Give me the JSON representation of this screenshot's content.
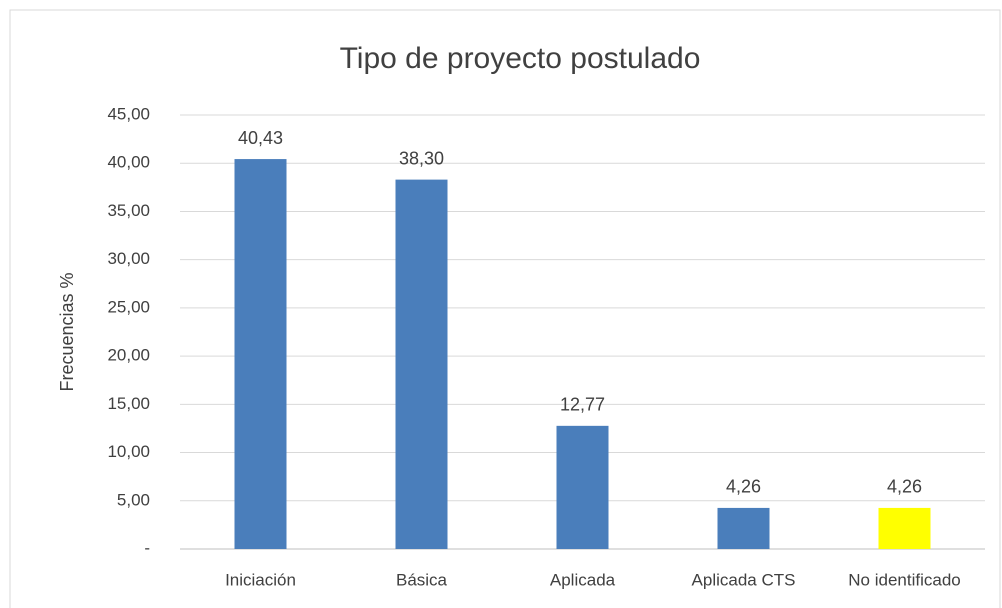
{
  "chart_data": {
    "type": "bar",
    "title": "Tipo de proyecto postulado",
    "y_label": "Frecuencias %",
    "categories": [
      "Iniciación",
      "Básica",
      "Aplicada",
      "Aplicada CTS",
      "No identificado"
    ],
    "values": [
      40.43,
      38.3,
      12.77,
      4.26,
      4.26
    ],
    "value_labels": [
      "40,43",
      "38,30",
      "12,77",
      "4,26",
      "4,26"
    ],
    "colors": [
      "#4a7ebb",
      "#4a7ebb",
      "#4a7ebb",
      "#4a7ebb",
      "#ffff00"
    ],
    "ylim": [
      0,
      45
    ],
    "yticks": [
      {
        "value": 0,
        "label": "-"
      },
      {
        "value": 5,
        "label": "5,00"
      },
      {
        "value": 10,
        "label": "10,00"
      },
      {
        "value": 15,
        "label": "15,00"
      },
      {
        "value": 20,
        "label": "20,00"
      },
      {
        "value": 25,
        "label": "25,00"
      },
      {
        "value": 30,
        "label": "30,00"
      },
      {
        "value": 35,
        "label": "35,00"
      },
      {
        "value": 40,
        "label": "40,00"
      },
      {
        "value": 45,
        "label": "45,00"
      }
    ],
    "grid": true
  }
}
